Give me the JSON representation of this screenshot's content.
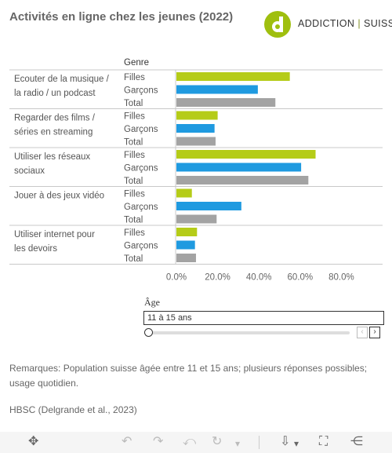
{
  "header": {
    "title": "Activités en ligne chez les jeunes (2022)",
    "logo_left": "ADDICTION",
    "logo_sep": "|",
    "logo_right": "SUISSE"
  },
  "chart_data": {
    "type": "bar",
    "orientation": "horizontal",
    "column_header": "Genre",
    "colors": {
      "Filles": "#b5cc18",
      "Garçons": "#1f9ae0",
      "Total": "#a3a3a3"
    },
    "groups": [
      {
        "label": "Ecouter de la musique / la radio / un podcast",
        "label_lines": [
          "Ecouter de la musique /",
          "la radio / un podcast"
        ],
        "rows": [
          {
            "genre": "Filles",
            "value": 55.0
          },
          {
            "genre": "Garçons",
            "value": 39.5
          },
          {
            "genre": "Total",
            "value": 48.0
          }
        ]
      },
      {
        "label": "Regarder des films / séries en streaming",
        "label_lines": [
          "Regarder des films /",
          "séries en streaming"
        ],
        "rows": [
          {
            "genre": "Filles",
            "value": 20.0
          },
          {
            "genre": "Garçons",
            "value": 18.5
          },
          {
            "genre": "Total",
            "value": 19.0
          }
        ]
      },
      {
        "label": "Utiliser les réseaux sociaux",
        "label_lines": [
          "Utiliser les réseaux",
          "sociaux"
        ],
        "rows": [
          {
            "genre": "Filles",
            "value": 67.5
          },
          {
            "genre": "Garçons",
            "value": 60.5
          },
          {
            "genre": "Total",
            "value": 64.0
          }
        ]
      },
      {
        "label": "Jouer à des jeux vidéo",
        "label_lines": [
          "Jouer à des jeux vidéo"
        ],
        "rows": [
          {
            "genre": "Filles",
            "value": 7.5
          },
          {
            "genre": "Garçons",
            "value": 31.5
          },
          {
            "genre": "Total",
            "value": 19.5
          }
        ]
      },
      {
        "label": "Utiliser internet pour les devoirs",
        "label_lines": [
          "Utiliser internet pour",
          "les devoirs"
        ],
        "rows": [
          {
            "genre": "Filles",
            "value": 10.0
          },
          {
            "genre": "Garçons",
            "value": 9.0
          },
          {
            "genre": "Total",
            "value": 9.5
          }
        ]
      }
    ],
    "ticks": [
      0,
      20,
      40,
      60,
      80
    ],
    "tick_labels": [
      "0.0%",
      "20.0%",
      "40.0%",
      "60.0%",
      "80.0%"
    ],
    "xlim": [
      0,
      86
    ],
    "grid": false
  },
  "filter": {
    "label": "Âge",
    "value": "11 à 15 ans",
    "prev_glyph": "‹",
    "next_glyph": "›"
  },
  "notes": {
    "remark": "Remarques: Population suisse âgée entre 11 et 15 ans;  plusieurs réponses possibles; usage quotidien.",
    "source": "HBSC (Delgrande et al., 2023)"
  },
  "toolbar": {
    "move_icon": "✥",
    "undo_icon": "↶",
    "redo_icon": "↷",
    "revert_icon": "⤺",
    "refresh_icon": "↻",
    "dropdown_icon": "▾",
    "download_icon": "⇩",
    "fullscreen_icon": "⛶",
    "share_icon": "⋲"
  }
}
